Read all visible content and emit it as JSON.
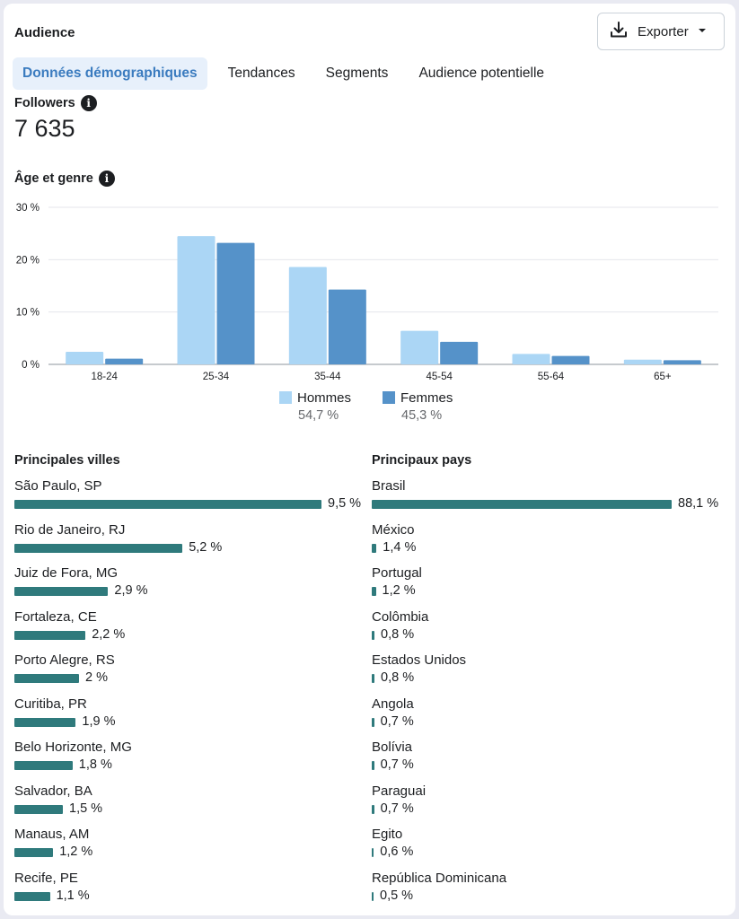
{
  "header": {
    "title": "Audience",
    "export_label": "Exporter"
  },
  "tabs": [
    {
      "label": "Données démographiques",
      "active": true
    },
    {
      "label": "Tendances",
      "active": false
    },
    {
      "label": "Segments",
      "active": false
    },
    {
      "label": "Audience potentielle",
      "active": false
    }
  ],
  "followers": {
    "label": "Followers",
    "value": "7 635"
  },
  "age_gender": {
    "label": "Âge et genre"
  },
  "chart_data": {
    "type": "bar",
    "categories": [
      "18-24",
      "25-34",
      "35-44",
      "45-54",
      "55-64",
      "65+"
    ],
    "series": [
      {
        "name": "Hommes",
        "values": [
          2.4,
          24.5,
          18.6,
          6.4,
          2.0,
          0.9
        ],
        "color": "#abd6f5"
      },
      {
        "name": "Femmes",
        "values": [
          1.1,
          23.2,
          14.3,
          4.3,
          1.6,
          0.8
        ],
        "color": "#5592c9"
      }
    ],
    "yticks": [
      "0 %",
      "10 %",
      "20 %",
      "30 %"
    ],
    "ylim": [
      0,
      30
    ],
    "grid": true,
    "legend_totals": [
      "54,7 %",
      "45,3 %"
    ]
  },
  "cities": {
    "title": "Principales villes",
    "items": [
      {
        "name": "São Paulo, SP",
        "pct": "9,5 %",
        "value": 9.5
      },
      {
        "name": "Rio de Janeiro, RJ",
        "pct": "5,2 %",
        "value": 5.2
      },
      {
        "name": "Juiz de Fora, MG",
        "pct": "2,9 %",
        "value": 2.9
      },
      {
        "name": "Fortaleza, CE",
        "pct": "2,2 %",
        "value": 2.2
      },
      {
        "name": "Porto Alegre, RS",
        "pct": "2 %",
        "value": 2.0
      },
      {
        "name": "Curitiba, PR",
        "pct": "1,9 %",
        "value": 1.9
      },
      {
        "name": "Belo Horizonte, MG",
        "pct": "1,8 %",
        "value": 1.8
      },
      {
        "name": "Salvador, BA",
        "pct": "1,5 %",
        "value": 1.5
      },
      {
        "name": "Manaus, AM",
        "pct": "1,2 %",
        "value": 1.2
      },
      {
        "name": "Recife, PE",
        "pct": "1,1 %",
        "value": 1.1
      }
    ]
  },
  "countries": {
    "title": "Principaux pays",
    "items": [
      {
        "name": "Brasil",
        "pct": "88,1 %",
        "value": 88.1
      },
      {
        "name": "México",
        "pct": "1,4 %",
        "value": 1.4
      },
      {
        "name": "Portugal",
        "pct": "1,2 %",
        "value": 1.2
      },
      {
        "name": "Colômbia",
        "pct": "0,8 %",
        "value": 0.8
      },
      {
        "name": "Estados Unidos",
        "pct": "0,8 %",
        "value": 0.8
      },
      {
        "name": "Angola",
        "pct": "0,7 %",
        "value": 0.7
      },
      {
        "name": "Bolívia",
        "pct": "0,7 %",
        "value": 0.7
      },
      {
        "name": "Paraguai",
        "pct": "0,7 %",
        "value": 0.7
      },
      {
        "name": "Egito",
        "pct": "0,6 %",
        "value": 0.6
      },
      {
        "name": "República Dominicana",
        "pct": "0,5 %",
        "value": 0.5
      }
    ]
  }
}
